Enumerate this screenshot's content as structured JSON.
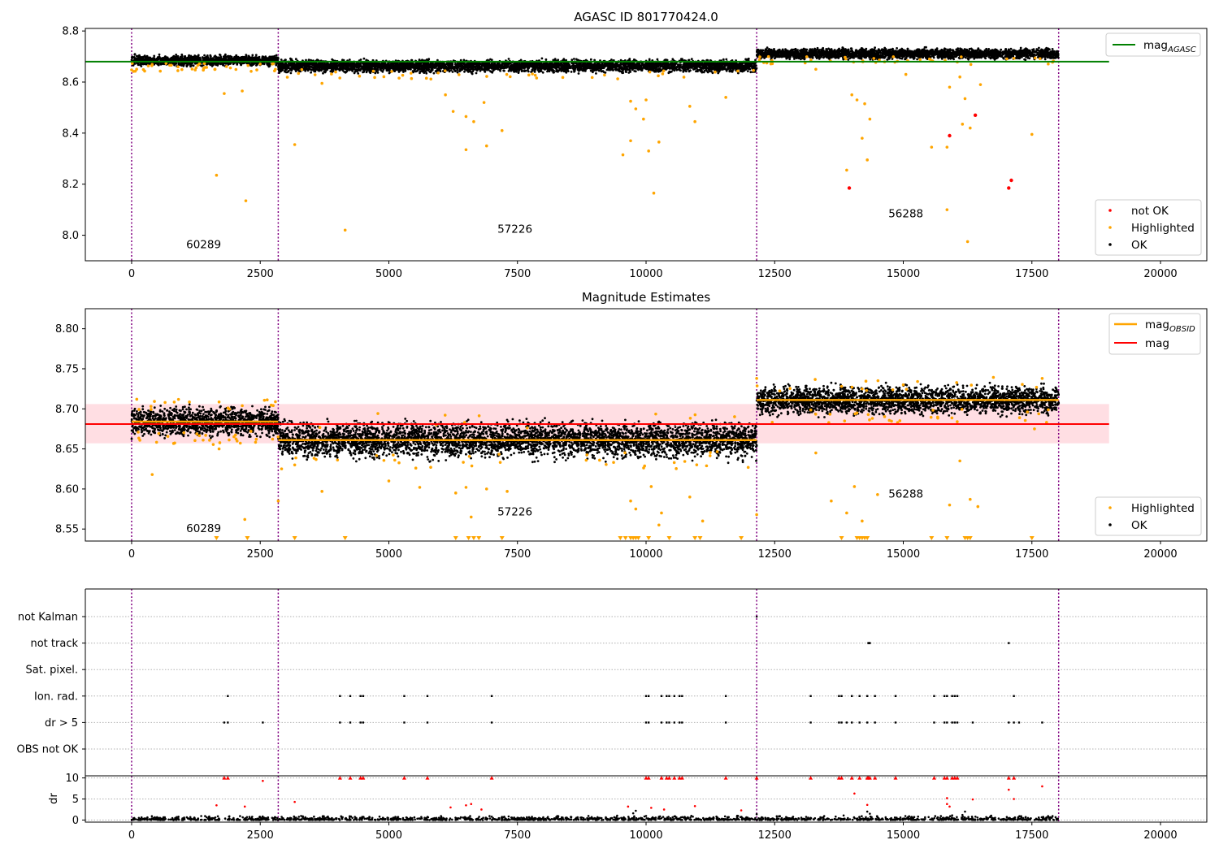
{
  "colors": {
    "agasc": "#008000",
    "mag": "#ff0000",
    "mag_obsid": "#ffa500",
    "not_ok": "#ff0000",
    "highlighted": "#ffa500",
    "ok": "#000000",
    "obs_divider": "#800080",
    "band": "#ffb6c1"
  },
  "chart_data": [
    {
      "type": "scatter",
      "title": "AGASC ID 801770424.0",
      "xlim": [
        -900,
        20900
      ],
      "ylim": [
        7.9,
        8.81
      ],
      "xticks": [
        0,
        2500,
        5000,
        7500,
        10000,
        12500,
        15000,
        17500,
        20000
      ],
      "yticks": [
        8.0,
        8.2,
        8.4,
        8.6,
        8.8
      ],
      "obs_boundaries": [
        0,
        2850,
        12150,
        18020
      ],
      "obs_labels": [
        {
          "label": "60289",
          "x": 1400,
          "y": 7.95
        },
        {
          "label": "57226",
          "x": 7450,
          "y": 8.01
        },
        {
          "label": "56288",
          "x": 15050,
          "y": 8.07
        }
      ],
      "hline": {
        "name": "mag_AGASC",
        "y": 8.68,
        "xrange": [
          -900,
          19000
        ]
      },
      "ok_bands": [
        {
          "x": [
            0,
            2850
          ],
          "center": 8.684,
          "spread": 0.009
        },
        {
          "x": [
            2850,
            12150
          ],
          "center": 8.663,
          "spread": 0.011
        },
        {
          "x": [
            12150,
            18020
          ],
          "center": 8.711,
          "spread": 0.009
        }
      ],
      "highlighted_points": [
        [
          1650,
          8.235
        ],
        [
          2220,
          8.135
        ],
        [
          2150,
          8.565
        ],
        [
          1800,
          8.555
        ],
        [
          3170,
          8.355
        ],
        [
          4150,
          8.02
        ],
        [
          3700,
          8.595
        ],
        [
          6250,
          8.485
        ],
        [
          6500,
          8.335
        ],
        [
          6650,
          8.445
        ],
        [
          6500,
          8.465
        ],
        [
          6900,
          8.35
        ],
        [
          7200,
          8.41
        ],
        [
          6850,
          8.52
        ],
        [
          6100,
          8.55
        ],
        [
          9550,
          8.315
        ],
        [
          9700,
          8.37
        ],
        [
          9950,
          8.455
        ],
        [
          10050,
          8.33
        ],
        [
          10150,
          8.165
        ],
        [
          10250,
          8.365
        ],
        [
          9800,
          8.495
        ],
        [
          9700,
          8.525
        ],
        [
          10000,
          8.53
        ],
        [
          10950,
          8.445
        ],
        [
          11550,
          8.54
        ],
        [
          10850,
          8.505
        ],
        [
          13900,
          8.255
        ],
        [
          14200,
          8.38
        ],
        [
          14300,
          8.295
        ],
        [
          14350,
          8.455
        ],
        [
          14000,
          8.55
        ],
        [
          14250,
          8.515
        ],
        [
          14100,
          8.53
        ],
        [
          15050,
          8.63
        ],
        [
          15550,
          8.345
        ],
        [
          15850,
          8.345
        ],
        [
          15850,
          8.1
        ],
        [
          16150,
          8.435
        ],
        [
          16250,
          7.975
        ],
        [
          16200,
          8.535
        ],
        [
          16300,
          8.42
        ],
        [
          17500,
          8.395
        ],
        [
          15900,
          8.58
        ],
        [
          16100,
          8.62
        ],
        [
          13300,
          8.65
        ],
        [
          16500,
          8.59
        ]
      ],
      "not_ok_points": [
        [
          13950,
          8.185
        ],
        [
          15900,
          8.39
        ],
        [
          16400,
          8.47
        ],
        [
          17050,
          8.185
        ],
        [
          17100,
          8.215
        ]
      ],
      "legend": {
        "position": "lower-right",
        "entries": [
          "not OK",
          "Highlighted",
          "OK"
        ]
      },
      "legend_top": {
        "position": "upper-right",
        "entries": [
          "mag_AGASC"
        ]
      }
    },
    {
      "type": "scatter",
      "title": "Magnitude Estimates",
      "xlim": [
        -900,
        20900
      ],
      "ylim": [
        8.535,
        8.825
      ],
      "xticks": [
        0,
        2500,
        5000,
        7500,
        10000,
        12500,
        15000,
        17500,
        20000
      ],
      "yticks": [
        8.55,
        8.6,
        8.65,
        8.7,
        8.75,
        8.8
      ],
      "obs_boundaries": [
        0,
        2850,
        12150,
        18020
      ],
      "obs_labels": [
        {
          "label": "60289",
          "x": 1400,
          "y": 8.546
        },
        {
          "label": "57226",
          "x": 7450,
          "y": 8.567
        },
        {
          "label": "56288",
          "x": 15050,
          "y": 8.589
        }
      ],
      "mag": {
        "y": 8.681,
        "band": [
          8.657,
          8.706
        ],
        "xrange": [
          -900,
          19000
        ]
      },
      "mag_obsid": [
        {
          "x": [
            0,
            2850
          ],
          "y": 8.684
        },
        {
          "x": [
            2850,
            12150
          ],
          "y": 8.661
        },
        {
          "x": [
            12150,
            18020
          ],
          "y": 8.711
        }
      ],
      "ok_bands": [
        {
          "x": [
            0,
            2850
          ],
          "center": 8.684,
          "spread": 0.008
        },
        {
          "x": [
            2850,
            12150
          ],
          "center": 8.661,
          "spread": 0.01
        },
        {
          "x": [
            12150,
            18020
          ],
          "center": 8.711,
          "spread": 0.008
        }
      ],
      "highlighted_points": [
        [
          400,
          8.618
        ],
        [
          1700,
          8.65
        ],
        [
          2200,
          8.562
        ],
        [
          3700,
          8.597
        ],
        [
          3170,
          8.63
        ],
        [
          5000,
          8.61
        ],
        [
          5600,
          8.602
        ],
        [
          6300,
          8.595
        ],
        [
          6500,
          8.602
        ],
        [
          6900,
          8.6
        ],
        [
          7300,
          8.597
        ],
        [
          6600,
          8.565
        ],
        [
          9700,
          8.585
        ],
        [
          9800,
          8.575
        ],
        [
          10100,
          8.603
        ],
        [
          10250,
          8.555
        ],
        [
          10300,
          8.57
        ],
        [
          10850,
          8.59
        ],
        [
          11100,
          8.56
        ],
        [
          13300,
          8.645
        ],
        [
          13600,
          8.585
        ],
        [
          13900,
          8.57
        ],
        [
          14050,
          8.603
        ],
        [
          14200,
          8.56
        ],
        [
          14500,
          8.593
        ],
        [
          15900,
          8.58
        ],
        [
          16100,
          8.635
        ],
        [
          16300,
          8.587
        ],
        [
          16450,
          8.578
        ],
        [
          17550,
          8.675
        ],
        [
          2850,
          8.585
        ],
        [
          12150,
          8.568
        ],
        [
          100,
          8.712
        ],
        [
          650,
          8.708
        ],
        [
          12150,
          8.738
        ],
        [
          17700,
          8.738
        ],
        [
          13800,
          8.728
        ],
        [
          14200,
          8.725
        ],
        [
          15000,
          8.73
        ]
      ],
      "clipped_low_x": [
        1650,
        2250,
        3170,
        4150,
        6300,
        6550,
        6650,
        6750,
        7200,
        9500,
        9600,
        9700,
        9750,
        9800,
        9850,
        10050,
        10450,
        10950,
        11050,
        11850,
        13800,
        14100,
        14150,
        14200,
        14250,
        14300,
        15550,
        15850,
        16200,
        16250,
        16300,
        17500
      ],
      "legend": {
        "position": "lower-right",
        "entries": [
          "Highlighted",
          "OK"
        ]
      },
      "legend_top": {
        "position": "upper-right",
        "entries": [
          "mag_OBSID",
          "mag"
        ]
      }
    },
    {
      "type": "scatter",
      "title": "",
      "xlim": [
        -900,
        20900
      ],
      "xticks": [
        0,
        2500,
        5000,
        7500,
        10000,
        12500,
        15000,
        17500,
        20000
      ],
      "obs_boundaries": [
        0,
        2850,
        12150,
        18020
      ],
      "flag_rows": [
        "not Kalman",
        "not track",
        "Sat. pixel.",
        "Ion. rad.",
        "dr > 5",
        "OBS not OK"
      ],
      "flag_points": {
        "not Kalman": [
          12150
        ],
        "not track": [
          14320,
          14330,
          14340,
          14350,
          17050
        ],
        "Sat. pixel.": [],
        "Ion. rad.": [
          1870,
          4050,
          4250,
          4450,
          4500,
          5300,
          5750,
          7000,
          10000,
          10050,
          10300,
          10400,
          10450,
          10550,
          10650,
          10700,
          11550,
          13200,
          13750,
          13800,
          14000,
          14150,
          14300,
          14450,
          14850,
          15600,
          15800,
          15850,
          15950,
          16000,
          16050,
          17150
        ],
        "dr > 5": [
          1800,
          1870,
          2550,
          4050,
          4250,
          4450,
          4500,
          5300,
          5750,
          7000,
          10000,
          10050,
          10300,
          10400,
          10450,
          10550,
          10650,
          10700,
          11550,
          13200,
          13750,
          13800,
          13900,
          14000,
          14150,
          14300,
          14450,
          14850,
          15600,
          15800,
          15850,
          15950,
          16000,
          16050,
          16350,
          17050,
          17150,
          17250,
          17700
        ],
        "OBS not OK": []
      }
    },
    {
      "type": "scatter",
      "title": "",
      "ylabel": "dr",
      "xlim": [
        -900,
        20900
      ],
      "ylim": [
        -0.5,
        10.5
      ],
      "yticks": [
        0,
        5,
        10
      ],
      "xticks": [
        0,
        2500,
        5000,
        7500,
        10000,
        12500,
        15000,
        17500,
        20000
      ],
      "obs_boundaries": [
        0,
        2850,
        12150,
        18020
      ],
      "red_at_cap_x": [
        1800,
        1870,
        4050,
        4250,
        4450,
        4500,
        5300,
        5750,
        7000,
        10000,
        10050,
        10300,
        10400,
        10450,
        10550,
        10650,
        10700,
        11550,
        12150,
        13200,
        13750,
        13800,
        14000,
        14150,
        14300,
        14320,
        14350,
        14450,
        14850,
        15600,
        15800,
        15850,
        15950,
        16000,
        16050,
        17050,
        17150
      ],
      "red_points": [
        [
          1650,
          3.5
        ],
        [
          2200,
          3.2
        ],
        [
          2550,
          9.3
        ],
        [
          3170,
          4.3
        ],
        [
          6200,
          3.0
        ],
        [
          6500,
          3.5
        ],
        [
          6600,
          3.8
        ],
        [
          6800,
          2.5
        ],
        [
          9650,
          3.2
        ],
        [
          10100,
          2.9
        ],
        [
          10350,
          2.5
        ],
        [
          10950,
          3.3
        ],
        [
          11850,
          2.3
        ],
        [
          14050,
          6.3
        ],
        [
          14300,
          3.6
        ],
        [
          15850,
          5.2
        ],
        [
          15850,
          3.8
        ],
        [
          15900,
          3.2
        ],
        [
          16350,
          4.9
        ],
        [
          17050,
          7.2
        ],
        [
          17150,
          5.0
        ],
        [
          17700,
          8.0
        ]
      ],
      "black_points": [
        [
          9800,
          2.2
        ],
        [
          9750,
          1.6
        ],
        [
          14300,
          2.0
        ],
        [
          14350,
          1.5
        ],
        [
          16200,
          2.0
        ],
        [
          16150,
          1.2
        ],
        [
          7000,
          0.8
        ],
        [
          1900,
          0.9
        ],
        [
          12150,
          1.4
        ],
        [
          15950,
          1.1
        ]
      ]
    }
  ],
  "legend_labels": {
    "not_ok": "not OK",
    "highlighted": "Highlighted",
    "ok": "OK",
    "mag_agasc_base": "mag",
    "mag_agasc_sub": "AGASC",
    "mag_obsid_base": "mag",
    "mag_obsid_sub": "OBSID",
    "mag": "mag"
  }
}
